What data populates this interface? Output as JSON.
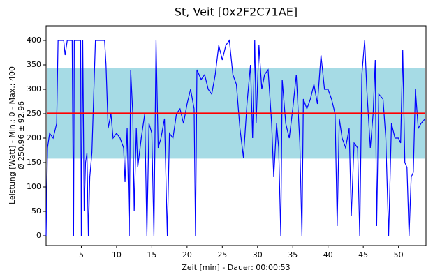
{
  "chart_data": {
    "type": "line",
    "title": "St, Veit [0x2F2C71AE]",
    "x_label": "Zeit [min] - Dauer: 00:00:53",
    "y_label": [
      "Leistung [Watt] - Min.: 0 - Max.: 400",
      "Ø 250,96 ± 92,96"
    ],
    "band": {
      "mean": 250.96,
      "sd": 92.96,
      "band_color": "#a6dbe5",
      "mean_color": "#ff0000"
    },
    "xlim": [
      0,
      53.9
    ],
    "ylim": [
      -20,
      430
    ],
    "xticks": [
      5,
      10,
      15,
      20,
      25,
      30,
      35,
      40,
      45,
      50
    ],
    "yticks": [
      0,
      50,
      100,
      150,
      200,
      250,
      300,
      350,
      400
    ],
    "series": [
      {
        "name": "Leistung",
        "color": "#0000ff",
        "x": [
          0,
          0.2,
          0.5,
          1,
          1.5,
          1.7,
          2.5,
          2.7,
          3,
          3.7,
          3.9,
          4.0,
          4.9,
          5.0,
          5.2,
          5.4,
          5.6,
          5.8,
          6.0,
          6.2,
          6.5,
          7,
          8.3,
          8.5,
          8.8,
          9.2,
          9.5,
          10,
          10.5,
          11,
          11.2,
          11.5,
          11.8,
          12,
          12.3,
          12.5,
          12.8,
          13,
          13.5,
          14,
          14.3,
          14.6,
          15,
          15.3,
          15.6,
          15.9,
          16.3,
          16.8,
          17.2,
          17.5,
          18,
          18.5,
          19,
          19.5,
          20,
          20.5,
          21,
          21.2,
          21.4,
          22,
          22.5,
          23,
          23.5,
          24,
          24.5,
          25,
          25.5,
          26,
          26.5,
          27,
          27.5,
          28,
          28.5,
          29,
          29.3,
          29.6,
          29.8,
          30.2,
          30.6,
          31,
          31.5,
          32,
          32.3,
          32.7,
          33,
          33.3,
          33.5,
          34,
          34.5,
          35,
          35.5,
          36,
          36.3,
          36.5,
          37,
          37.5,
          38,
          38.5,
          39,
          39.5,
          40,
          40.5,
          41,
          41.3,
          41.6,
          42,
          42.5,
          43,
          43.3,
          43.7,
          44.2,
          44.5,
          44.8,
          45.2,
          45.5,
          46,
          46.4,
          46.7,
          46.9,
          47.2,
          47.8,
          48.2,
          48.6,
          49,
          49.5,
          50,
          50.3,
          50.6,
          50.9,
          51.2,
          51.5,
          51.8,
          52.1,
          52.4,
          52.8,
          53.2,
          53.8
        ],
        "values": [
          0,
          180,
          210,
          200,
          230,
          400,
          400,
          370,
          400,
          400,
          0,
          400,
          400,
          0,
          400,
          50,
          150,
          170,
          0,
          120,
          170,
          400,
          400,
          350,
          220,
          250,
          200,
          210,
          200,
          180,
          110,
          220,
          0,
          340,
          250,
          50,
          220,
          140,
          200,
          250,
          0,
          230,
          210,
          0,
          400,
          180,
          200,
          240,
          0,
          210,
          200,
          250,
          260,
          230,
          270,
          300,
          260,
          0,
          340,
          320,
          330,
          300,
          290,
          330,
          390,
          360,
          390,
          400,
          330,
          310,
          220,
          160,
          270,
          350,
          200,
          400,
          230,
          390,
          300,
          330,
          340,
          230,
          120,
          230,
          180,
          0,
          320,
          230,
          200,
          260,
          330,
          190,
          0,
          280,
          260,
          280,
          310,
          270,
          370,
          300,
          300,
          280,
          250,
          20,
          240,
          200,
          180,
          220,
          40,
          190,
          180,
          0,
          330,
          400,
          300,
          180,
          250,
          360,
          20,
          290,
          280,
          200,
          0,
          230,
          200,
          200,
          190,
          380,
          150,
          140,
          0,
          120,
          130,
          300,
          220,
          230,
          240
        ]
      }
    ]
  }
}
